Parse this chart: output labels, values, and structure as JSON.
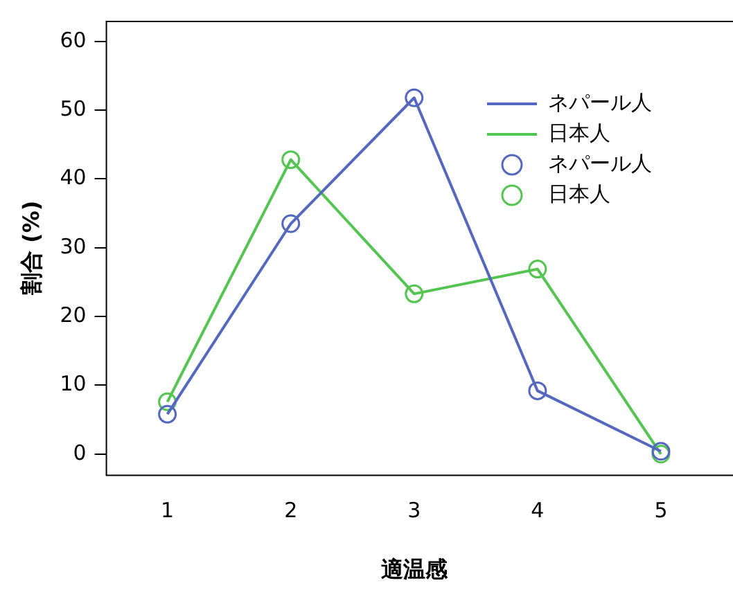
{
  "chart_data": {
    "type": "line",
    "xlabel": "適温感",
    "ylabel": "割合 (%)",
    "categories": [
      "1",
      "2",
      "3",
      "4",
      "5"
    ],
    "series": [
      {
        "name": "ネパール人",
        "color": "#5468c0",
        "values": [
          5.8,
          33.5,
          51.8,
          9.2,
          0.4
        ]
      },
      {
        "name": "日本人",
        "color": "#55c552",
        "values": [
          7.6,
          42.8,
          23.3,
          26.9,
          0
        ]
      }
    ],
    "ylim": [
      -3,
      63
    ],
    "yticks": [
      0,
      10,
      20,
      30,
      40,
      50,
      60
    ],
    "grid": false,
    "legend": "top right",
    "marker": "circle",
    "line_style": "solid"
  }
}
